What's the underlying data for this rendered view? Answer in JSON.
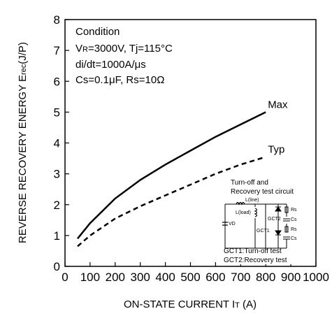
{
  "chart_data": {
    "type": "line",
    "xlabel": "ON-STATE CURRENT IT (A)",
    "xlabel_main": "ON-STATE CURRENT I",
    "xlabel_sub": "T",
    "xlabel_unit": " (A)",
    "ylabel_main": "REVERSE RECOVERY ENERGY E",
    "ylabel_sub": "rec",
    "ylabel_unit": "(J/P)",
    "xlim": [
      0,
      1000
    ],
    "ylim": [
      0,
      8
    ],
    "x_ticks": [
      "0",
      "100",
      "200",
      "300",
      "400",
      "500",
      "600",
      "700",
      "800",
      "900",
      "1000"
    ],
    "y_ticks": [
      "0",
      "1",
      "2",
      "3",
      "4",
      "5",
      "6",
      "7",
      "8"
    ],
    "series": [
      {
        "name": "Max",
        "style": "solid",
        "x": [
          50,
          100,
          200,
          300,
          400,
          500,
          600,
          700,
          800
        ],
        "y": [
          0.9,
          1.4,
          2.2,
          2.8,
          3.3,
          3.75,
          4.2,
          4.6,
          5.0
        ]
      },
      {
        "name": "Typ",
        "style": "dashed",
        "x": [
          50,
          100,
          200,
          300,
          400,
          500,
          600,
          700,
          800
        ],
        "y": [
          0.65,
          1.0,
          1.55,
          1.95,
          2.3,
          2.65,
          3.0,
          3.3,
          3.55
        ]
      }
    ],
    "conditions": {
      "title": "Condition",
      "line1": "VR=3000V, Tj=115°C",
      "line1_v": "V",
      "line1_sub": "R",
      "line1_rest": "=3000V, Tj=115°C",
      "line2": "di/dt=1000A/μs",
      "line3": "Cs=0.1μF, Rs=10Ω"
    },
    "inset": {
      "title1": "Turn-off and",
      "title2": "Recovery test circuit",
      "label_lline": "L(line)",
      "label_lload": "L(load)",
      "label_vd": "VD",
      "label_gct1": "GCT1",
      "label_gct2": "GCT2",
      "label_rs1": "Rs",
      "label_cs1": "Cs",
      "label_rs2": "Rs",
      "label_cs2": "Cs",
      "legend1": "GCT1:Turn-off test",
      "legend2": "GCT2:Recovery test"
    },
    "grid": false,
    "colors": {
      "line": "#000000",
      "background": "#ffffff"
    }
  }
}
